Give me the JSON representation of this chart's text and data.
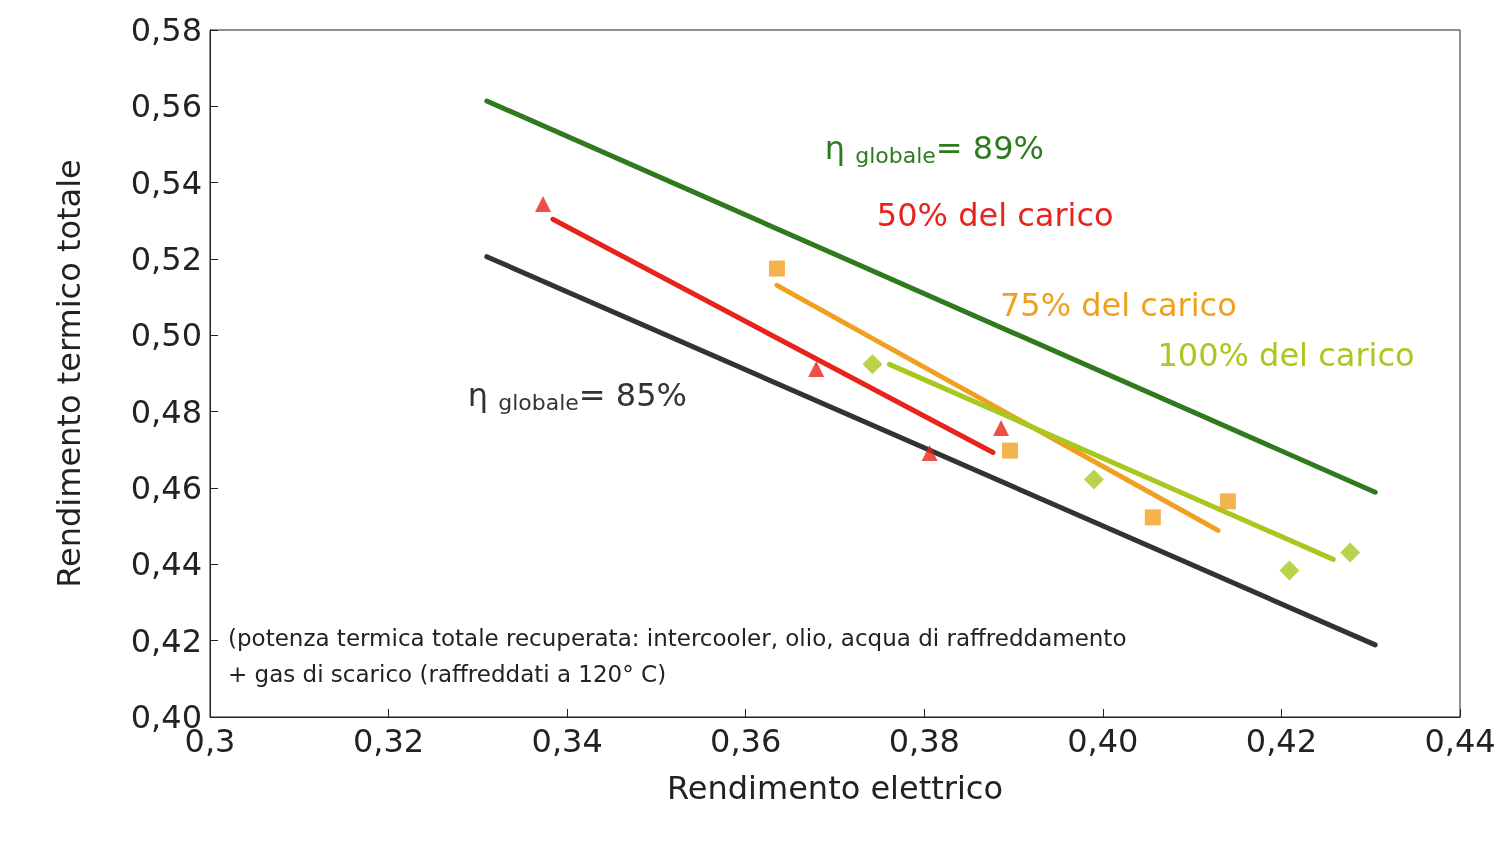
{
  "chart_data": {
    "type": "scatter",
    "xlabel": "Rendimento elettrico",
    "ylabel": "Rendimento termico totale",
    "xlim": [
      0.3,
      0.44
    ],
    "xticks": [
      {
        "value": 0.3,
        "label": "0,3"
      },
      {
        "value": 0.32,
        "label": "0,32"
      },
      {
        "value": 0.34,
        "label": "0,34"
      },
      {
        "value": 0.36,
        "label": "0,36"
      },
      {
        "value": 0.38,
        "label": "0,38"
      },
      {
        "value": 0.4,
        "label": "0,40"
      },
      {
        "value": 0.42,
        "label": "0,42"
      },
      {
        "value": 0.44,
        "label": "0,44"
      }
    ],
    "ylim": [
      0.4,
      0.58
    ],
    "yticks": [
      {
        "value": 0.4,
        "label": "0,40"
      },
      {
        "value": 0.42,
        "label": "0,42"
      },
      {
        "value": 0.44,
        "label": "0,44"
      },
      {
        "value": 0.46,
        "label": "0,46"
      },
      {
        "value": 0.48,
        "label": "0,48"
      },
      {
        "value": 0.5,
        "label": "0,50"
      },
      {
        "value": 0.52,
        "label": "0,52"
      },
      {
        "value": 0.54,
        "label": "0,54"
      },
      {
        "value": 0.56,
        "label": "0,56"
      },
      {
        "value": 0.58,
        "label": "0,58"
      }
    ],
    "grid": false,
    "legend": false,
    "series": [
      {
        "type": "line",
        "name": "η $_{globale}$= 89%",
        "color": "#2f7a1f",
        "x": [
          0.331,
          0.4305
        ],
        "values": [
          0.5614,
          0.4589
        ],
        "marker": "none"
      },
      {
        "type": "line",
        "name": "η $_{globale}$= 85%",
        "color": "#333333",
        "x": [
          0.331,
          0.4305
        ],
        "values": [
          0.5206,
          0.4189
        ],
        "marker": "none"
      },
      {
        "color": "#e8231c",
        "marker": "triangle",
        "x": [
          0.3373,
          0.3679,
          0.3806,
          0.3886
        ],
        "values": [
          0.5344,
          0.4912,
          0.4692,
          0.4757
        ]
      },
      {
        "type": "line",
        "name": "50% del carico",
        "color": "#e8231c",
        "marker": "none",
        "x": [
          0.3384,
          0.3877
        ],
        "values": [
          0.5304,
          0.4693
        ]
      },
      {
        "color": "#f0a020",
        "marker": "square",
        "x": [
          0.3635,
          0.3896,
          0.4056,
          0.414
        ],
        "values": [
          0.5175,
          0.4698,
          0.4523,
          0.4565
        ]
      },
      {
        "type": "line",
        "name": "75% del carico",
        "color": "#f0a020",
        "marker": "none",
        "x": [
          0.3635,
          0.4129
        ],
        "values": [
          0.5131,
          0.4489
        ]
      },
      {
        "color": "#a8c820",
        "marker": "diamond",
        "x": [
          0.3742,
          0.399,
          0.4209,
          0.4277
        ],
        "values": [
          0.4924,
          0.4622,
          0.4384,
          0.4431
        ]
      },
      {
        "type": "line",
        "name": "100% del carico",
        "color": "#a8c820",
        "marker": "none",
        "x": [
          0.3761,
          0.4258
        ],
        "values": [
          0.4924,
          0.4413
        ]
      }
    ],
    "annotations": [
      "(potenza termica totale recuperata: intercooler, olio, acqua di raffreddamento + gas di scarico (raffreddati a 120° C)"
    ]
  }
}
